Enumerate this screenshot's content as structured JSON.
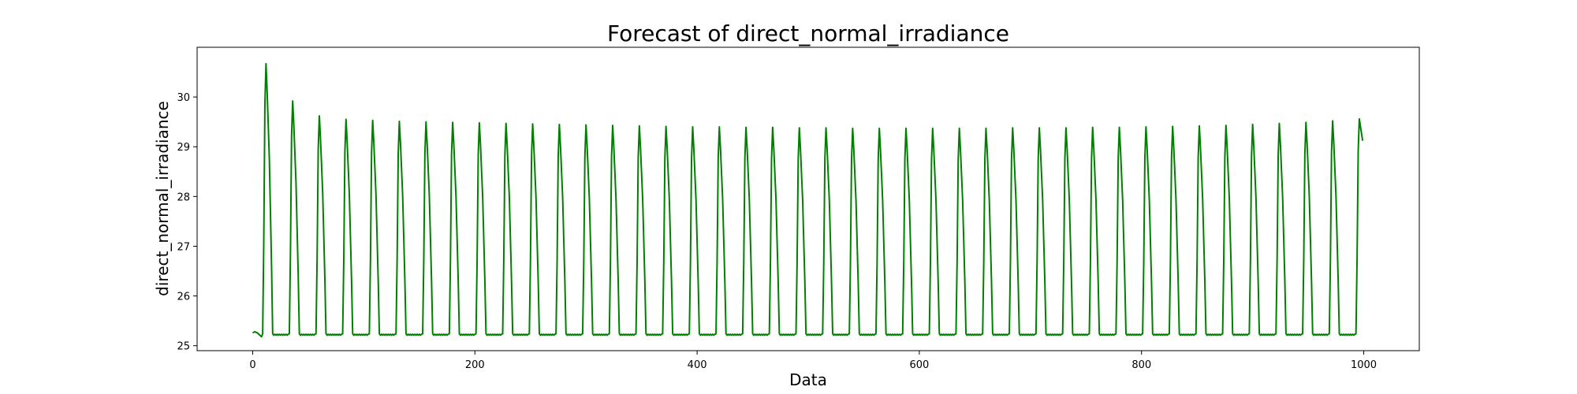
{
  "chart_data": {
    "type": "line",
    "title": "Forecast of direct_normal_irradiance",
    "xlabel": "Data",
    "ylabel": "direct_normal_irradiance",
    "xlim": [
      -50,
      1050
    ],
    "ylim": [
      24.9,
      31.0
    ],
    "x_ticks": [
      0,
      200,
      400,
      600,
      800,
      1000
    ],
    "y_ticks": [
      25,
      26,
      27,
      28,
      29,
      30
    ],
    "grid": false,
    "legend": "none",
    "series_color": "#008000",
    "cycle": {
      "period": 24,
      "rise_start": 9,
      "rise_end": 12,
      "fall_start": 12,
      "fall_end": 18,
      "base": 25.22,
      "first_x": 0,
      "last_x": 999
    },
    "series": [
      {
        "peaks": [
          [
            12,
            30.67
          ],
          [
            36,
            29.92
          ],
          [
            60,
            29.62
          ],
          [
            84,
            29.55
          ],
          [
            108,
            29.53
          ],
          [
            132,
            29.51
          ],
          [
            156,
            29.5
          ],
          [
            180,
            29.49
          ],
          [
            204,
            29.48
          ],
          [
            228,
            29.47
          ],
          [
            252,
            29.46
          ],
          [
            276,
            29.45
          ],
          [
            300,
            29.44
          ],
          [
            324,
            29.43
          ],
          [
            348,
            29.42
          ],
          [
            372,
            29.41
          ],
          [
            396,
            29.4
          ],
          [
            420,
            29.4
          ],
          [
            444,
            29.39
          ],
          [
            468,
            29.39
          ],
          [
            492,
            29.38
          ],
          [
            516,
            29.38
          ],
          [
            540,
            29.37
          ],
          [
            564,
            29.37
          ],
          [
            588,
            29.37
          ],
          [
            612,
            29.37
          ],
          [
            636,
            29.37
          ],
          [
            660,
            29.37
          ],
          [
            684,
            29.38
          ],
          [
            708,
            29.38
          ],
          [
            732,
            29.38
          ],
          [
            756,
            29.39
          ],
          [
            780,
            29.39
          ],
          [
            804,
            29.4
          ],
          [
            828,
            29.41
          ],
          [
            852,
            29.42
          ],
          [
            876,
            29.43
          ],
          [
            900,
            29.45
          ],
          [
            924,
            29.47
          ],
          [
            948,
            29.49
          ],
          [
            972,
            29.52
          ],
          [
            996,
            29.56
          ]
        ],
        "endpoint": [
          999,
          29.12
        ]
      }
    ]
  }
}
